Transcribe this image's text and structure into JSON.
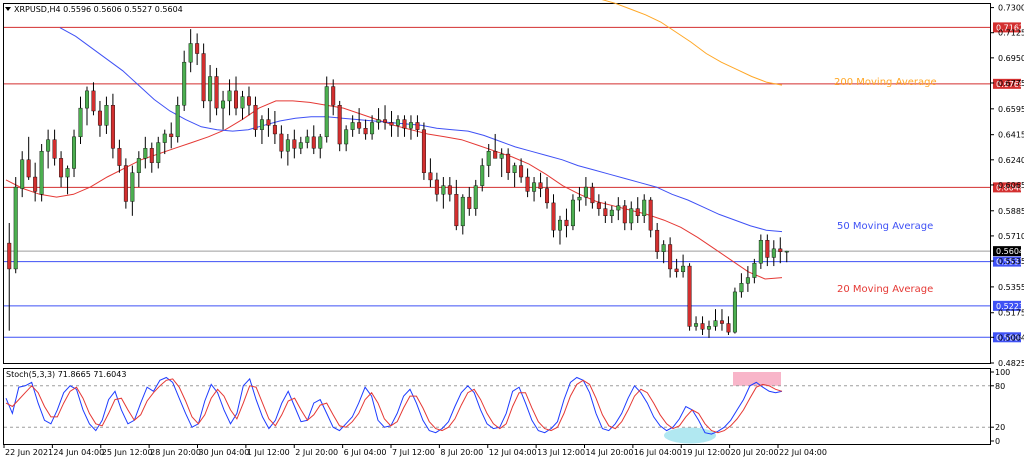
{
  "header": {
    "symbol_line": "XRPUSD,H4  0.5596 0.5606 0.5527 0.5604"
  },
  "stoch_header": {
    "label": "Stoch(5,3,3) 71.8665 71.6043"
  },
  "colors": {
    "background": "#ffffff",
    "bull_candle": "#4caf50",
    "bear_candle": "#d32f2f",
    "ma20": "#e53935",
    "ma50": "#3f51f5",
    "ma200": "#ffa726",
    "resistance": "#d32f2f",
    "support": "#3f51f5",
    "stoch_main": "#1e3cff",
    "stoch_signal": "#e53935",
    "overbought_zone": "#f7a8c0",
    "oversold_zone": "#a8e6ef"
  },
  "labels": {
    "ma200": "200 Moving Average",
    "ma50": "50 Moving Average",
    "ma20": "20 Moving Average"
  },
  "chart_data": [
    {
      "type": "candlestick",
      "symbol": "XRPUSD",
      "timeframe": "H4",
      "x_ticks": [
        "22 Jun 2021",
        "24 Jun 04:00",
        "25 Jun 12:00",
        "28 Jun 20:00",
        "30 Jun 04:00",
        "1 Jul 12:00",
        "2 Jul 20:00",
        "6 Jul 04:00",
        "7 Jul 12:00",
        "8 Jul 20:00",
        "12 Jul 04:00",
        "13 Jul 12:00",
        "14 Jul 20:00",
        "16 Jul 04:00",
        "19 Jul 12:00",
        "20 Jul 20:00",
        "22 Jul 04:00"
      ],
      "y_ticks": [
        0.73,
        0.7125,
        0.695,
        0.6775,
        0.6595,
        0.6415,
        0.624,
        0.6065,
        0.5885,
        0.571,
        0.5535,
        0.5355,
        0.5175,
        0.5004,
        0.4825
      ],
      "y_tick_labels": [
        "0.7300",
        "0.7125",
        "0.6950",
        "0.6775",
        "0.6595",
        "0.6415",
        "0.6240",
        "0.6065",
        "0.5885",
        "0.5710",
        "0.5535",
        "0.5355",
        "0.5175",
        "0.5004",
        "0.4825"
      ],
      "ylim": [
        0.4825,
        0.7325
      ],
      "horizontal_levels": [
        {
          "value": 0.7162,
          "label": "0.7162",
          "kind": "resistance"
        },
        {
          "value": 0.6769,
          "label": "0.6769",
          "kind": "resistance"
        },
        {
          "value": 0.6048,
          "label": "0.6048",
          "kind": "resistance"
        },
        {
          "value": 0.5531,
          "label": "0.5531",
          "kind": "support"
        },
        {
          "value": 0.5223,
          "label": "0.5223",
          "kind": "support"
        },
        {
          "value": 0.5004,
          "label": "0.5004",
          "kind": "support"
        }
      ],
      "current_price": {
        "value": 0.5604,
        "label": "0.5604"
      },
      "candles_ohlc": [
        [
          0.566,
          0.58,
          0.505,
          0.548
        ],
        [
          0.548,
          0.612,
          0.545,
          0.605
        ],
        [
          0.604,
          0.63,
          0.598,
          0.624
        ],
        [
          0.624,
          0.64,
          0.61,
          0.612
        ],
        [
          0.612,
          0.622,
          0.595,
          0.602
        ],
        [
          0.6,
          0.635,
          0.595,
          0.63
        ],
        [
          0.63,
          0.645,
          0.618,
          0.638
        ],
        [
          0.638,
          0.645,
          0.62,
          0.625
        ],
        [
          0.625,
          0.63,
          0.605,
          0.612
        ],
        [
          0.612,
          0.62,
          0.6,
          0.618
        ],
        [
          0.618,
          0.645,
          0.612,
          0.64
        ],
        [
          0.64,
          0.668,
          0.635,
          0.66
        ],
        [
          0.66,
          0.675,
          0.648,
          0.672
        ],
        [
          0.672,
          0.678,
          0.655,
          0.658
        ],
        [
          0.658,
          0.665,
          0.64,
          0.648
        ],
        [
          0.648,
          0.668,
          0.642,
          0.662
        ],
        [
          0.662,
          0.67,
          0.625,
          0.632
        ],
        [
          0.632,
          0.638,
          0.615,
          0.62
        ],
        [
          0.62,
          0.625,
          0.59,
          0.595
        ],
        [
          0.595,
          0.62,
          0.585,
          0.615
        ],
        [
          0.615,
          0.63,
          0.605,
          0.625
        ],
        [
          0.625,
          0.64,
          0.618,
          0.632
        ],
        [
          0.632,
          0.636,
          0.615,
          0.622
        ],
        [
          0.622,
          0.64,
          0.618,
          0.636
        ],
        [
          0.636,
          0.645,
          0.628,
          0.642
        ],
        [
          0.642,
          0.65,
          0.632,
          0.64
        ],
        [
          0.64,
          0.668,
          0.636,
          0.662
        ],
        [
          0.662,
          0.7,
          0.658,
          0.692
        ],
        [
          0.692,
          0.715,
          0.685,
          0.705
        ],
        [
          0.705,
          0.712,
          0.69,
          0.698
        ],
        [
          0.698,
          0.705,
          0.66,
          0.665
        ],
        [
          0.665,
          0.69,
          0.65,
          0.682
        ],
        [
          0.682,
          0.688,
          0.655,
          0.66
        ],
        [
          0.66,
          0.672,
          0.645,
          0.665
        ],
        [
          0.665,
          0.68,
          0.655,
          0.672
        ],
        [
          0.672,
          0.682,
          0.655,
          0.66
        ],
        [
          0.66,
          0.672,
          0.652,
          0.668
        ],
        [
          0.668,
          0.675,
          0.655,
          0.662
        ],
        [
          0.662,
          0.668,
          0.64,
          0.645
        ],
        [
          0.645,
          0.655,
          0.635,
          0.652
        ],
        [
          0.652,
          0.66,
          0.64,
          0.648
        ],
        [
          0.648,
          0.658,
          0.635,
          0.642
        ],
        [
          0.642,
          0.648,
          0.625,
          0.63
        ],
        [
          0.63,
          0.642,
          0.62,
          0.638
        ],
        [
          0.638,
          0.645,
          0.625,
          0.632
        ],
        [
          0.632,
          0.64,
          0.628,
          0.636
        ],
        [
          0.636,
          0.645,
          0.632,
          0.64
        ],
        [
          0.64,
          0.648,
          0.628,
          0.632
        ],
        [
          0.632,
          0.642,
          0.625,
          0.64
        ],
        [
          0.64,
          0.682,
          0.636,
          0.675
        ],
        [
          0.675,
          0.68,
          0.655,
          0.662
        ],
        [
          0.662,
          0.665,
          0.63,
          0.635
        ],
        [
          0.635,
          0.648,
          0.63,
          0.645
        ],
        [
          0.645,
          0.655,
          0.64,
          0.65
        ],
        [
          0.65,
          0.66,
          0.642,
          0.646
        ],
        [
          0.646,
          0.652,
          0.638,
          0.642
        ],
        [
          0.642,
          0.655,
          0.638,
          0.65
        ],
        [
          0.65,
          0.66,
          0.645,
          0.652
        ],
        [
          0.652,
          0.662,
          0.645,
          0.65
        ],
        [
          0.65,
          0.658,
          0.64,
          0.648
        ],
        [
          0.648,
          0.655,
          0.64,
          0.652
        ],
        [
          0.652,
          0.655,
          0.64,
          0.646
        ],
        [
          0.646,
          0.655,
          0.638,
          0.65
        ],
        [
          0.65,
          0.655,
          0.64,
          0.645
        ],
        [
          0.645,
          0.65,
          0.61,
          0.615
        ],
        [
          0.615,
          0.625,
          0.605,
          0.61
        ],
        [
          0.61,
          0.615,
          0.595,
          0.6
        ],
        [
          0.6,
          0.612,
          0.59,
          0.606
        ],
        [
          0.606,
          0.612,
          0.595,
          0.6
        ],
        [
          0.6,
          0.61,
          0.575,
          0.578
        ],
        [
          0.578,
          0.6,
          0.572,
          0.598
        ],
        [
          0.598,
          0.605,
          0.585,
          0.59
        ],
        [
          0.59,
          0.61,
          0.585,
          0.606
        ],
        [
          0.606,
          0.625,
          0.602,
          0.62
        ],
        [
          0.62,
          0.635,
          0.612,
          0.63
        ],
        [
          0.63,
          0.642,
          0.625,
          0.625
        ],
        [
          0.625,
          0.632,
          0.612,
          0.628
        ],
        [
          0.628,
          0.632,
          0.61,
          0.615
        ],
        [
          0.615,
          0.622,
          0.605,
          0.62
        ],
        [
          0.62,
          0.625,
          0.608,
          0.612
        ],
        [
          0.612,
          0.618,
          0.598,
          0.602
        ],
        [
          0.602,
          0.612,
          0.595,
          0.608
        ],
        [
          0.608,
          0.615,
          0.598,
          0.604
        ],
        [
          0.604,
          0.612,
          0.59,
          0.594
        ],
        [
          0.594,
          0.6,
          0.57,
          0.575
        ],
        [
          0.575,
          0.585,
          0.565,
          0.582
        ],
        [
          0.582,
          0.59,
          0.57,
          0.578
        ],
        [
          0.578,
          0.6,
          0.575,
          0.596
        ],
        [
          0.596,
          0.605,
          0.588,
          0.598
        ],
        [
          0.598,
          0.612,
          0.592,
          0.605
        ],
        [
          0.605,
          0.608,
          0.59,
          0.594
        ],
        [
          0.594,
          0.6,
          0.585,
          0.59
        ],
        [
          0.59,
          0.595,
          0.58,
          0.585
        ],
        [
          0.585,
          0.592,
          0.58,
          0.589
        ],
        [
          0.589,
          0.598,
          0.582,
          0.592
        ],
        [
          0.592,
          0.596,
          0.575,
          0.58
        ],
        [
          0.58,
          0.595,
          0.575,
          0.59
        ],
        [
          0.59,
          0.598,
          0.58,
          0.585
        ],
        [
          0.585,
          0.6,
          0.58,
          0.596
        ],
        [
          0.596,
          0.598,
          0.57,
          0.575
        ],
        [
          0.575,
          0.58,
          0.555,
          0.56
        ],
        [
          0.56,
          0.568,
          0.552,
          0.565
        ],
        [
          0.565,
          0.57,
          0.542,
          0.548
        ],
        [
          0.548,
          0.555,
          0.542,
          0.546
        ],
        [
          0.546,
          0.558,
          0.542,
          0.55
        ],
        [
          0.55,
          0.552,
          0.505,
          0.508
        ],
        [
          0.508,
          0.515,
          0.505,
          0.51
        ],
        [
          0.51,
          0.515,
          0.502,
          0.506
        ],
        [
          0.506,
          0.512,
          0.5,
          0.508
        ],
        [
          0.508,
          0.52,
          0.505,
          0.512
        ],
        [
          0.512,
          0.52,
          0.505,
          0.51
        ],
        [
          0.51,
          0.515,
          0.502,
          0.504
        ],
        [
          0.504,
          0.535,
          0.503,
          0.532
        ],
        [
          0.532,
          0.545,
          0.528,
          0.538
        ],
        [
          0.538,
          0.55,
          0.532,
          0.542
        ],
        [
          0.542,
          0.555,
          0.538,
          0.552
        ],
        [
          0.552,
          0.572,
          0.548,
          0.568
        ],
        [
          0.568,
          0.572,
          0.55,
          0.556
        ],
        [
          0.556,
          0.568,
          0.55,
          0.562
        ],
        [
          0.562,
          0.57,
          0.552,
          0.56
        ],
        [
          0.56,
          0.5606,
          0.5527,
          0.5604
        ]
      ],
      "series": [
        {
          "name": "20 Moving Average",
          "values": [
            0.61,
            0.604,
            0.6,
            0.598,
            0.6,
            0.605,
            0.612,
            0.618,
            0.624,
            0.628,
            0.632,
            0.636,
            0.64,
            0.645,
            0.652,
            0.66,
            0.665,
            0.665,
            0.664,
            0.662,
            0.66,
            0.656,
            0.652,
            0.648,
            0.645,
            0.642,
            0.64,
            0.638,
            0.634,
            0.63,
            0.626,
            0.621,
            0.614,
            0.606,
            0.6,
            0.595,
            0.592,
            0.589,
            0.586,
            0.582,
            0.577,
            0.57,
            0.562,
            0.554,
            0.546,
            0.541,
            0.542
          ]
        },
        {
          "name": "50 Moving Average",
          "values": [
            0.716,
            0.71,
            0.702,
            0.694,
            0.686,
            0.676,
            0.666,
            0.658,
            0.652,
            0.647,
            0.645,
            0.644,
            0.645,
            0.648,
            0.651,
            0.653,
            0.654,
            0.654,
            0.653,
            0.652,
            0.651,
            0.65,
            0.649,
            0.648,
            0.646,
            0.645,
            0.644,
            0.641,
            0.637,
            0.633,
            0.63,
            0.627,
            0.624,
            0.62,
            0.617,
            0.614,
            0.611,
            0.608,
            0.605,
            0.6,
            0.596,
            0.591,
            0.586,
            0.582,
            0.578,
            0.575,
            0.574
          ]
        },
        {
          "name": "200 Moving Average",
          "values": [
            0.736,
            0.733,
            0.729,
            0.725,
            0.72,
            0.713,
            0.706,
            0.698,
            0.692,
            0.687,
            0.682,
            0.678,
            0.676
          ]
        }
      ]
    },
    {
      "type": "line",
      "indicator": "Stochastic",
      "params": "5,3,3",
      "y_ticks": [
        100,
        80,
        20,
        0
      ],
      "ylim": [
        0,
        100
      ],
      "levels": [
        80,
        20
      ],
      "series": [
        {
          "name": "%K",
          "values": [
            62,
            40,
            78,
            80,
            85,
            55,
            30,
            25,
            45,
            70,
            80,
            75,
            45,
            25,
            15,
            30,
            60,
            72,
            45,
            25,
            30,
            55,
            78,
            72,
            88,
            92,
            85,
            62,
            40,
            20,
            25,
            58,
            82,
            70,
            45,
            25,
            40,
            80,
            90,
            60,
            35,
            18,
            30,
            55,
            72,
            50,
            28,
            30,
            55,
            60,
            40,
            20,
            15,
            25,
            35,
            55,
            78,
            65,
            30,
            20,
            22,
            40,
            65,
            75,
            55,
            30,
            15,
            12,
            18,
            28,
            50,
            70,
            80,
            70,
            45,
            25,
            18,
            20,
            40,
            72,
            78,
            55,
            30,
            15,
            12,
            18,
            28,
            60,
            85,
            92,
            88,
            70,
            40,
            18,
            15,
            25,
            40,
            62,
            80,
            70,
            55,
            35,
            22,
            15,
            20,
            32,
            50,
            45,
            30,
            12,
            10,
            14,
            20,
            30,
            45,
            60,
            80,
            85,
            78,
            72,
            70,
            72
          ]
        },
        {
          "name": "%D",
          "values": [
            55,
            50,
            60,
            70,
            80,
            70,
            50,
            35,
            35,
            55,
            72,
            78,
            62,
            40,
            25,
            22,
            40,
            60,
            62,
            45,
            30,
            38,
            58,
            70,
            80,
            88,
            90,
            78,
            58,
            35,
            25,
            38,
            62,
            75,
            65,
            45,
            32,
            55,
            80,
            78,
            55,
            32,
            22,
            38,
            58,
            62,
            45,
            30,
            38,
            52,
            55,
            38,
            22,
            20,
            28,
            40,
            60,
            70,
            55,
            32,
            22,
            28,
            48,
            65,
            65,
            48,
            28,
            18,
            15,
            20,
            32,
            52,
            70,
            75,
            60,
            40,
            25,
            18,
            25,
            50,
            70,
            70,
            48,
            28,
            18,
            15,
            20,
            40,
            65,
            82,
            88,
            82,
            62,
            38,
            22,
            18,
            28,
            45,
            65,
            75,
            70,
            55,
            38,
            25,
            18,
            22,
            35,
            45,
            40,
            25,
            15,
            12,
            15,
            22,
            32,
            45,
            62,
            78,
            82,
            80,
            75,
            72
          ]
        }
      ]
    }
  ]
}
